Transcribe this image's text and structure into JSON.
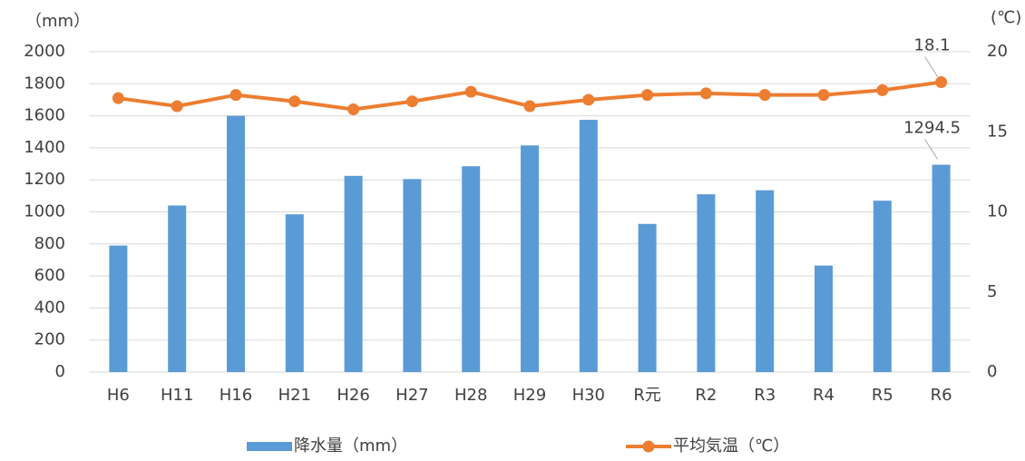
{
  "chart_data": {
    "type": "bar_line",
    "y_unit": "（mm）",
    "y2_unit": "(℃)",
    "categories": [
      "H6",
      "H11",
      "H16",
      "H21",
      "H26",
      "H27",
      "H28",
      "H29",
      "H30",
      "R元",
      "R2",
      "R3",
      "R4",
      "R5",
      "R6"
    ],
    "series": [
      {
        "name": "降水量（mm）",
        "type": "bar",
        "color": "#5b9bd5",
        "axis": "y",
        "values": [
          790,
          1040,
          1600,
          985,
          1225,
          1205,
          1285,
          1415,
          1575,
          925,
          1110,
          1135,
          665,
          1070,
          1294.5
        ]
      },
      {
        "name": "平均気温（℃）",
        "type": "line",
        "color": "#ed7d31",
        "axis": "y2",
        "values": [
          17.1,
          16.6,
          17.3,
          16.9,
          16.4,
          16.9,
          17.5,
          16.6,
          17.0,
          17.3,
          17.4,
          17.3,
          17.3,
          17.6,
          18.1
        ]
      }
    ],
    "ylim": [
      0,
      2000
    ],
    "yticks": [
      0,
      200,
      400,
      600,
      800,
      1000,
      1200,
      1400,
      1600,
      1800,
      2000
    ],
    "y2lim": [
      0,
      20
    ],
    "y2ticks": [
      0,
      5,
      10,
      15,
      20
    ],
    "grid": true
  }
}
